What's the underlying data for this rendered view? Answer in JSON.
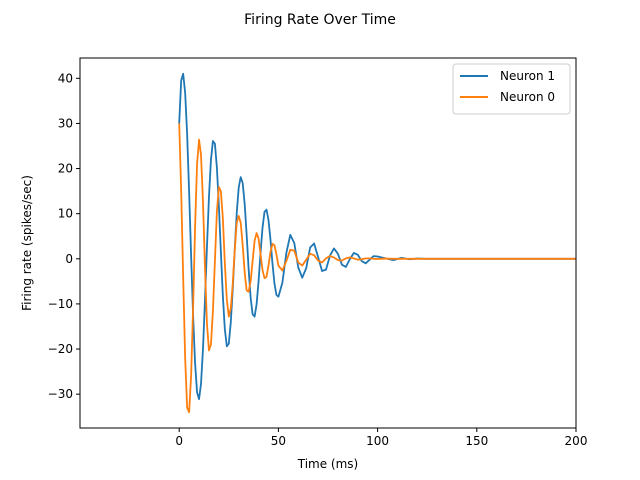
{
  "chart_data": {
    "type": "line",
    "title": "Firing Rate Over Time",
    "xlabel": "Time (ms)",
    "ylabel": "Firing rate (spikes/sec)",
    "xlim": [
      -50,
      200
    ],
    "ylim": [
      -37.5,
      44.5
    ],
    "xticks": [
      0,
      50,
      100,
      150,
      200
    ],
    "yticks": [
      -30,
      -20,
      -10,
      0,
      10,
      20,
      30,
      40
    ],
    "grid": false,
    "legend_position": "upper-right",
    "series": [
      {
        "name": "Neuron 1",
        "color": "#1f77b4",
        "x": [
          0,
          1,
          2,
          3,
          4,
          5,
          6,
          7,
          8,
          9,
          10,
          11,
          12,
          13,
          14,
          15,
          16,
          17,
          18,
          19,
          20,
          21,
          22,
          23,
          24,
          25,
          26,
          27,
          28,
          29,
          30,
          31,
          32,
          33,
          34,
          35,
          36,
          37,
          38,
          39,
          40,
          41,
          42,
          43,
          44,
          45,
          46,
          47,
          48,
          49,
          50,
          52,
          54,
          56,
          58,
          60,
          62,
          64,
          66,
          68,
          70,
          72,
          74,
          76,
          78,
          80,
          82,
          84,
          86,
          88,
          90,
          92,
          94,
          96,
          98,
          100,
          104,
          108,
          112,
          116,
          120,
          124,
          128,
          132,
          136,
          140,
          150,
          160,
          170,
          180,
          190,
          200
        ],
        "y": [
          30.0,
          39.5,
          41.0,
          36.8,
          27.6,
          14.8,
          0.8,
          -12.5,
          -23.1,
          -29.6,
          -31.1,
          -27.7,
          -19.9,
          -9.1,
          2.7,
          13.7,
          21.9,
          26.1,
          25.5,
          20.2,
          11.7,
          1.6,
          -8.2,
          -15.6,
          -19.4,
          -18.8,
          -14.1,
          -6.6,
          2.1,
          10.2,
          15.8,
          18.1,
          16.8,
          12.2,
          5.3,
          -2.3,
          -8.6,
          -12.3,
          -12.8,
          -10.1,
          -5.0,
          1.3,
          6.9,
          10.4,
          10.9,
          8.6,
          4.3,
          -1.0,
          -5.4,
          -8.0,
          -8.4,
          -5.3,
          1.3,
          5.3,
          3.5,
          -1.9,
          -4.2,
          -2.1,
          2.5,
          3.4,
          0.4,
          -2.7,
          -2.4,
          0.7,
          2.3,
          1.1,
          -1.3,
          -1.8,
          -0.1,
          1.3,
          0.9,
          -0.5,
          -1.0,
          -0.2,
          0.6,
          0.5,
          0.1,
          -0.3,
          0.2,
          -0.1,
          0.05,
          0.0,
          0.0,
          0.0,
          0.0,
          0.0,
          0.0,
          0.0,
          0.0,
          0.0,
          0.0,
          0.0
        ]
      },
      {
        "name": "Neuron 0",
        "color": "#ff7f0e",
        "x": [
          0,
          1,
          2,
          3,
          4,
          5,
          6,
          7,
          8,
          9,
          10,
          11,
          12,
          13,
          14,
          15,
          16,
          17,
          18,
          19,
          20,
          21,
          22,
          23,
          24,
          25,
          26,
          27,
          28,
          29,
          30,
          31,
          32,
          33,
          34,
          35,
          36,
          37,
          38,
          39,
          40,
          41,
          42,
          43,
          44,
          45,
          46,
          47,
          48,
          49,
          50,
          52,
          54,
          56,
          58,
          60,
          62,
          64,
          66,
          68,
          70,
          72,
          74,
          76,
          78,
          80,
          82,
          84,
          86,
          88,
          90,
          92,
          94,
          96,
          98,
          100,
          104,
          108,
          112,
          116,
          120,
          124,
          128,
          132,
          136,
          140,
          150,
          160,
          170,
          180,
          190,
          200
        ],
        "y": [
          30.0,
          15.0,
          -4.0,
          -22.0,
          -33.0,
          -34.0,
          -26.0,
          -11.0,
          7.0,
          21.0,
          26.4,
          23.0,
          12.5,
          -2.0,
          -14.5,
          -20.3,
          -19.0,
          -11.5,
          -0.5,
          10.5,
          15.9,
          15.0,
          9.0,
          -1.0,
          -9.0,
          -12.8,
          -11.0,
          -5.5,
          2.0,
          8.0,
          9.5,
          8.0,
          3.0,
          -3.0,
          -7.0,
          -7.3,
          -5.0,
          -0.5,
          4.0,
          5.7,
          4.5,
          1.0,
          -2.5,
          -4.3,
          -4.0,
          -1.5,
          1.5,
          3.3,
          3.0,
          1.0,
          -1.5,
          -2.6,
          -0.5,
          2.0,
          1.8,
          -0.8,
          -1.5,
          -0.2,
          1.1,
          0.8,
          -0.4,
          -0.8,
          0.1,
          0.6,
          0.3,
          -0.3,
          -0.4,
          0.1,
          0.3,
          0.1,
          -0.2,
          -0.1,
          0.1,
          0.1,
          0.0,
          -0.05,
          0.05,
          0.0,
          0.0,
          0.0,
          0.0,
          0.0,
          0.0,
          0.0,
          0.0,
          0.0,
          0.0,
          0.0,
          0.0,
          0.0,
          0.0,
          0.0
        ]
      }
    ]
  }
}
